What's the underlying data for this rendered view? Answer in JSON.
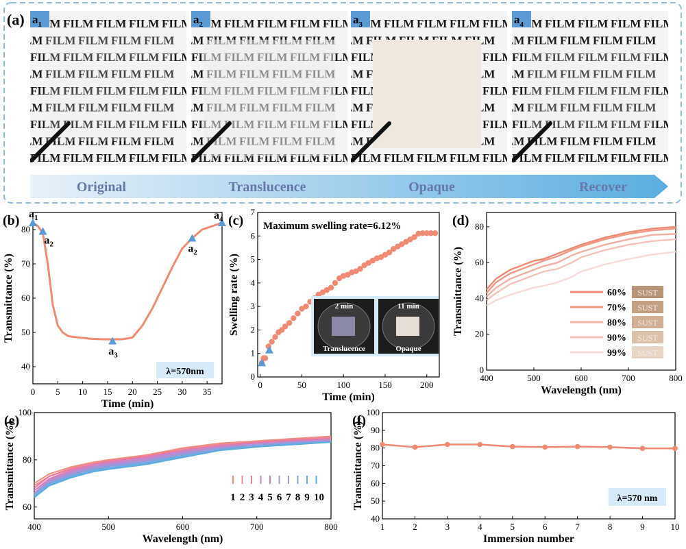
{
  "panel_a": {
    "label": "(a)",
    "photo_text": "FILM",
    "photo_tags": [
      "a",
      "a",
      "a",
      "a"
    ],
    "photo_tag_subs": [
      "1",
      "2",
      "3",
      "4"
    ],
    "stages": [
      "Original",
      "Translucence",
      "Opaque",
      "Recover"
    ],
    "colors": {
      "frame": "#8fbfdc",
      "arrow_start": "#e8f1f9",
      "arrow_end": "#5aaee0",
      "stage_text": "#6677aa",
      "tag_bg": "#5b9bd5"
    }
  },
  "chart_data": [
    {
      "panel": "(b)",
      "type": "line",
      "xlabel": "Time (min)",
      "ylabel": "Transmittance (%)",
      "xlim": [
        0,
        38
      ],
      "ylim": [
        35,
        85
      ],
      "xticks": [
        0,
        5,
        10,
        15,
        20,
        25,
        30,
        35
      ],
      "yticks": [
        40,
        50,
        60,
        70,
        80
      ],
      "color": "#f08a72",
      "series": [
        {
          "x": [
            0,
            1,
            2,
            3,
            4,
            5,
            6,
            7,
            8,
            10,
            12,
            14,
            16,
            18,
            20,
            22,
            24,
            26,
            28,
            30,
            32,
            34,
            36,
            38
          ],
          "y": [
            82,
            81,
            79,
            70,
            58,
            52,
            50,
            49,
            48.7,
            48.4,
            48.1,
            48,
            48,
            48,
            48.5,
            52,
            57,
            63,
            69,
            74.5,
            77.5,
            80,
            81,
            82
          ]
        }
      ],
      "markers": [
        {
          "x": 0,
          "y": 82,
          "label": "a",
          "sub": "1"
        },
        {
          "x": 2,
          "y": 79.5,
          "label": "a",
          "sub": "2"
        },
        {
          "x": 16,
          "y": 47.5,
          "label": "a",
          "sub": "3"
        },
        {
          "x": 32,
          "y": 77.5,
          "label": "a",
          "sub": "2"
        },
        {
          "x": 38,
          "y": 82,
          "label": "a",
          "sub": "4"
        }
      ],
      "note": "λ=570nm"
    },
    {
      "panel": "(c)",
      "type": "scatter",
      "xlabel": "Time (min)",
      "ylabel": "Swelling rate (%)",
      "xlim": [
        -3,
        215
      ],
      "ylim": [
        0,
        7
      ],
      "xticks": [
        0,
        50,
        100,
        150,
        200
      ],
      "yticks": [
        0,
        1,
        2,
        3,
        4,
        5,
        6,
        7
      ],
      "color": "#f08a72",
      "series": [
        {
          "x": [
            2,
            4,
            6,
            10,
            14,
            18,
            22,
            26,
            30,
            35,
            40,
            45,
            50,
            55,
            60,
            65,
            70,
            75,
            80,
            85,
            90,
            95,
            100,
            105,
            110,
            115,
            120,
            125,
            130,
            135,
            140,
            145,
            150,
            155,
            160,
            165,
            170,
            175,
            180,
            185,
            190,
            195,
            200,
            205,
            210
          ],
          "y": [
            0.6,
            0.8,
            0.8,
            1.3,
            1.5,
            1.7,
            1.9,
            2.0,
            2.15,
            2.3,
            2.5,
            2.7,
            2.9,
            3.0,
            3.2,
            3.35,
            3.5,
            3.6,
            3.7,
            3.8,
            4.0,
            4.2,
            4.3,
            4.35,
            4.45,
            4.5,
            4.6,
            4.75,
            4.85,
            4.95,
            5.05,
            5.1,
            5.2,
            5.3,
            5.45,
            5.55,
            5.65,
            5.75,
            5.85,
            5.95,
            6.1,
            6.12,
            6.12,
            6.12,
            6.12
          ]
        }
      ],
      "markers": [
        {
          "x": 2,
          "y": 0.6
        },
        {
          "x": 11,
          "y": 1.15
        }
      ],
      "title": "Maximum swelling rate=6.12%",
      "inset": {
        "times": [
          "2 min",
          "11 min"
        ],
        "labels": [
          "Translucence",
          "Opaque"
        ]
      }
    },
    {
      "panel": "(d)",
      "type": "line",
      "xlabel": "Wavelength (nm)",
      "ylabel": "Transmittance (%)",
      "xlim": [
        400,
        800
      ],
      "ylim": [
        0,
        88
      ],
      "xticks": [
        400,
        500,
        600,
        700,
        800
      ],
      "yticks": [
        0,
        20,
        40,
        60,
        80
      ],
      "x": [
        400,
        420,
        450,
        480,
        500,
        520,
        550,
        580,
        600,
        650,
        700,
        750,
        800
      ],
      "series": [
        {
          "name": "60%",
          "color": "#ef8a73",
          "values": [
            45,
            51,
            56,
            59,
            61,
            62,
            65,
            68,
            70,
            74,
            77,
            79,
            80
          ]
        },
        {
          "name": "70%",
          "color": "#f29a86",
          "values": [
            43,
            49,
            54,
            57,
            59,
            61,
            63.5,
            67,
            69,
            73,
            76,
            78,
            79
          ]
        },
        {
          "name": "80%",
          "color": "#f4b0a2",
          "values": [
            41,
            46,
            51,
            54,
            56,
            58,
            60,
            64,
            66,
            70,
            73,
            75.5,
            76
          ]
        },
        {
          "name": "90%",
          "color": "#f6c3b8",
          "values": [
            39,
            43,
            48,
            51,
            53,
            55,
            56.5,
            60,
            63,
            67,
            70,
            72,
            73
          ]
        },
        {
          "name": "99%",
          "color": "#f9dcd5",
          "values": [
            36,
            39,
            42,
            44.5,
            46,
            47,
            49,
            52,
            55,
            59,
            62,
            64.5,
            66
          ]
        }
      ],
      "legend_tag": "SUST",
      "legend_tag_colors": [
        "#b89476",
        "#c4a083",
        "#cfae94",
        "#dbc0aa",
        "#e7d5c6"
      ]
    },
    {
      "panel": "(e)",
      "type": "line",
      "xlabel": "Wavelength (nm)",
      "ylabel": "Transmittance (%)",
      "xlim": [
        400,
        800
      ],
      "ylim": [
        55,
        100
      ],
      "xticks": [
        400,
        500,
        600,
        700,
        800
      ],
      "yticks": [
        60,
        80,
        100
      ],
      "x": [
        400,
        420,
        450,
        480,
        500,
        550,
        600,
        650,
        700,
        750,
        800
      ],
      "series": [
        {
          "name": "1",
          "color": "#f0907a",
          "values": [
            70,
            74,
            77,
            79,
            80,
            82,
            85,
            87,
            88,
            89,
            90
          ]
        },
        {
          "name": "2",
          "color": "#ef8795",
          "values": [
            69,
            73,
            76.5,
            78.5,
            79.5,
            81.5,
            84.5,
            86.5,
            87.5,
            88.5,
            89.5
          ]
        },
        {
          "name": "3",
          "color": "#e97aa2",
          "values": [
            68,
            73,
            76,
            78,
            79.5,
            81.5,
            84,
            86,
            87.5,
            88.5,
            89
          ]
        },
        {
          "name": "4",
          "color": "#db7db5",
          "values": [
            67,
            72,
            75.5,
            78,
            79,
            81,
            84,
            86,
            87,
            88,
            89
          ]
        },
        {
          "name": "5",
          "color": "#c985c5",
          "values": [
            67,
            71.5,
            75,
            77.5,
            78.5,
            80.5,
            83.5,
            85.5,
            86.5,
            87.5,
            88.5
          ]
        },
        {
          "name": "6",
          "color": "#b08fd2",
          "values": [
            66,
            71,
            74.5,
            77,
            78,
            80,
            83,
            85,
            86.5,
            87.5,
            88
          ]
        },
        {
          "name": "7",
          "color": "#9a98da",
          "values": [
            65.5,
            70.5,
            74,
            76.5,
            77.5,
            79.5,
            82.5,
            85,
            86.5,
            87.5,
            88
          ]
        },
        {
          "name": "8",
          "color": "#84a2de",
          "values": [
            65,
            70,
            73.5,
            76,
            77,
            79,
            82,
            84.5,
            86,
            87,
            87.5
          ]
        },
        {
          "name": "9",
          "color": "#6eabe0",
          "values": [
            64.5,
            69.5,
            73,
            75.5,
            76.5,
            78.5,
            81.5,
            84,
            85.5,
            86.5,
            87.5
          ]
        },
        {
          "name": "10",
          "color": "#5aaee0",
          "values": [
            64,
            69,
            72.5,
            75,
            76,
            78,
            81,
            84,
            85.5,
            86.5,
            87.5
          ]
        }
      ]
    },
    {
      "panel": "(f)",
      "type": "line",
      "xlabel": "Immersion number",
      "ylabel": "Transmittance (%)",
      "xlim": [
        1,
        10
      ],
      "ylim": [
        40,
        100
      ],
      "xticks": [
        1,
        2,
        3,
        4,
        5,
        6,
        7,
        8,
        9,
        10
      ],
      "yticks": [
        40,
        50,
        60,
        70,
        80,
        90,
        100
      ],
      "color": "#f08a72",
      "series": [
        {
          "x": [
            1,
            2,
            3,
            4,
            5,
            6,
            7,
            8,
            9,
            10
          ],
          "y": [
            82,
            80.5,
            82,
            82,
            80.8,
            80.5,
            80.8,
            80.5,
            79.8,
            79.8
          ]
        }
      ],
      "note": "λ=570 nm"
    }
  ]
}
